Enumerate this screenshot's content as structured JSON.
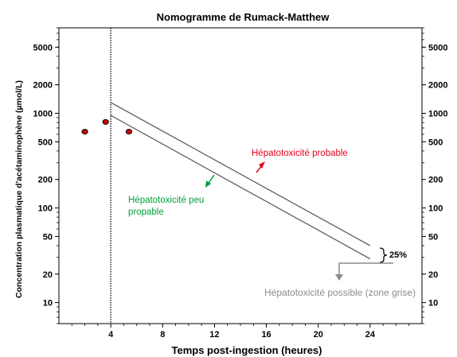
{
  "chart_data": {
    "type": "line",
    "title": "Nomogramme de Rumack-Matthew",
    "xlabel": "Temps post-ingestion (heures)",
    "ylabel": "Concentration plasmatique d'acétaminophène  (µmol/L)",
    "x_ticks": [
      4,
      8,
      12,
      16,
      20,
      24
    ],
    "y_ticks": [
      10,
      20,
      50,
      100,
      200,
      500,
      1000,
      2000,
      5000
    ],
    "xlim": [
      0,
      28
    ],
    "ylim": [
      6,
      8000
    ],
    "y_scale": "log",
    "grid": false,
    "series": [
      {
        "x": [
          4,
          24
        ],
        "y": [
          1300,
          40
        ]
      },
      {
        "x": [
          4,
          24
        ],
        "y": [
          950,
          29
        ]
      }
    ],
    "points": [
      {
        "x": 2,
        "y": 640
      },
      {
        "x": 3.6,
        "y": 810
      },
      {
        "x": 5.4,
        "y": 640
      }
    ],
    "vertical_line": {
      "x": 4,
      "style": "dotted"
    },
    "annotations": {
      "probable": "Hépatotoxicité probable",
      "peu_probable_line1": "Hépatotoxicité peu",
      "peu_probable_line2": "propable",
      "possible": "Hépatotoxicité possible (zone grise)",
      "percent": "25%"
    },
    "colors": {
      "points": "#d10000",
      "probable": "#e8001c",
      "peu_probable": "#00a13a",
      "possible": "#8c8c8c",
      "lines": "#555555"
    }
  }
}
